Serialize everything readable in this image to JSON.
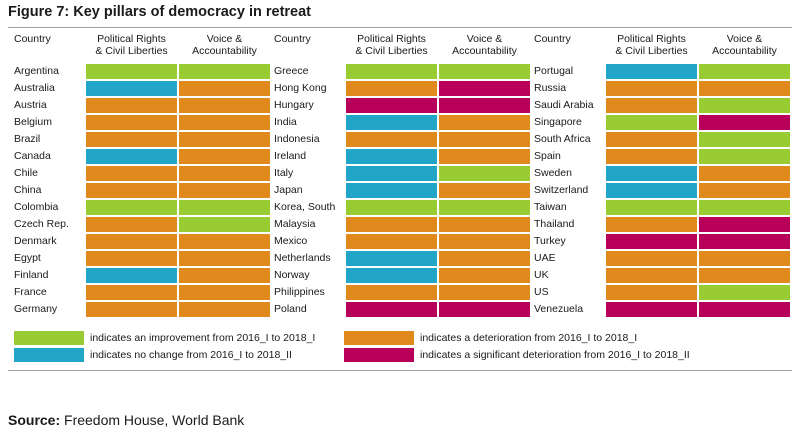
{
  "title": "Figure 7: Key pillars of democracy in retreat",
  "headers": {
    "country": "Country",
    "prcl": "Political Rights\n& Civil Liberties",
    "va": "Voice &\nAccountability"
  },
  "colors": {
    "improvement": "#99CC33",
    "no_change": "#21A6C8",
    "deterioration": "#E08A1E",
    "significant_deterioration": "#B8005A"
  },
  "chart_data": {
    "type": "table",
    "columns": [
      "Country",
      "Political Rights & Civil Liberties",
      "Voice & Accountability"
    ],
    "groups": [
      {
        "rows": [
          {
            "country": "Argentina",
            "prcl": "improvement",
            "va": "improvement"
          },
          {
            "country": "Australia",
            "prcl": "no_change",
            "va": "deterioration"
          },
          {
            "country": "Austria",
            "prcl": "deterioration",
            "va": "deterioration"
          },
          {
            "country": "Belgium",
            "prcl": "deterioration",
            "va": "deterioration"
          },
          {
            "country": "Brazil",
            "prcl": "deterioration",
            "va": "deterioration"
          },
          {
            "country": "Canada",
            "prcl": "no_change",
            "va": "deterioration"
          },
          {
            "country": "Chile",
            "prcl": "deterioration",
            "va": "deterioration"
          },
          {
            "country": "China",
            "prcl": "deterioration",
            "va": "deterioration"
          },
          {
            "country": "Colombia",
            "prcl": "improvement",
            "va": "improvement"
          },
          {
            "country": "Czech Rep.",
            "prcl": "deterioration",
            "va": "improvement"
          },
          {
            "country": "Denmark",
            "prcl": "deterioration",
            "va": "deterioration"
          },
          {
            "country": "Egypt",
            "prcl": "deterioration",
            "va": "deterioration"
          },
          {
            "country": "Finland",
            "prcl": "no_change",
            "va": "deterioration"
          },
          {
            "country": "France",
            "prcl": "deterioration",
            "va": "deterioration"
          },
          {
            "country": "Germany",
            "prcl": "deterioration",
            "va": "deterioration"
          }
        ]
      },
      {
        "rows": [
          {
            "country": "Greece",
            "prcl": "improvement",
            "va": "improvement"
          },
          {
            "country": "Hong Kong",
            "prcl": "deterioration",
            "va": "significant_deterioration"
          },
          {
            "country": "Hungary",
            "prcl": "significant_deterioration",
            "va": "significant_deterioration"
          },
          {
            "country": "India",
            "prcl": "no_change",
            "va": "deterioration"
          },
          {
            "country": "Indonesia",
            "prcl": "deterioration",
            "va": "deterioration"
          },
          {
            "country": "Ireland",
            "prcl": "no_change",
            "va": "deterioration"
          },
          {
            "country": "Italy",
            "prcl": "no_change",
            "va": "improvement"
          },
          {
            "country": "Japan",
            "prcl": "no_change",
            "va": "deterioration"
          },
          {
            "country": "Korea, South",
            "prcl": "improvement",
            "va": "improvement"
          },
          {
            "country": "Malaysia",
            "prcl": "deterioration",
            "va": "deterioration"
          },
          {
            "country": "Mexico",
            "prcl": "deterioration",
            "va": "deterioration"
          },
          {
            "country": "Netherlands",
            "prcl": "no_change",
            "va": "deterioration"
          },
          {
            "country": "Norway",
            "prcl": "no_change",
            "va": "deterioration"
          },
          {
            "country": "Philippines",
            "prcl": "deterioration",
            "va": "deterioration"
          },
          {
            "country": "Poland",
            "prcl": "significant_deterioration",
            "va": "significant_deterioration"
          }
        ]
      },
      {
        "rows": [
          {
            "country": "Portugal",
            "prcl": "no_change",
            "va": "improvement"
          },
          {
            "country": "Russia",
            "prcl": "deterioration",
            "va": "deterioration"
          },
          {
            "country": "Saudi Arabia",
            "prcl": "deterioration",
            "va": "improvement"
          },
          {
            "country": "Singapore",
            "prcl": "improvement",
            "va": "significant_deterioration"
          },
          {
            "country": "South Africa",
            "prcl": "deterioration",
            "va": "improvement"
          },
          {
            "country": "Spain",
            "prcl": "deterioration",
            "va": "improvement"
          },
          {
            "country": "Sweden",
            "prcl": "no_change",
            "va": "deterioration"
          },
          {
            "country": "Switzerland",
            "prcl": "no_change",
            "va": "deterioration"
          },
          {
            "country": "Taiwan",
            "prcl": "improvement",
            "va": "improvement"
          },
          {
            "country": "Thailand",
            "prcl": "deterioration",
            "va": "significant_deterioration"
          },
          {
            "country": "Turkey",
            "prcl": "significant_deterioration",
            "va": "significant_deterioration"
          },
          {
            "country": "UAE",
            "prcl": "deterioration",
            "va": "deterioration"
          },
          {
            "country": "UK",
            "prcl": "deterioration",
            "va": "deterioration"
          },
          {
            "country": "US",
            "prcl": "deterioration",
            "va": "improvement"
          },
          {
            "country": "Venezuela",
            "prcl": "significant_deterioration",
            "va": "significant_deterioration"
          }
        ]
      }
    ]
  },
  "legend": [
    {
      "key": "improvement",
      "label": "indicates an improvement from 2016_I to 2018_I"
    },
    {
      "key": "deterioration",
      "label": "indicates a deterioration from 2016_I to 2018_I"
    },
    {
      "key": "no_change",
      "label": "indicates no change from 2016_I to 2018_II"
    },
    {
      "key": "significant_deterioration",
      "label": "indicates a significant deterioration from 2016_I to 2018_II"
    }
  ],
  "source": {
    "label": "Source:",
    "text": "Freedom House, World Bank"
  }
}
